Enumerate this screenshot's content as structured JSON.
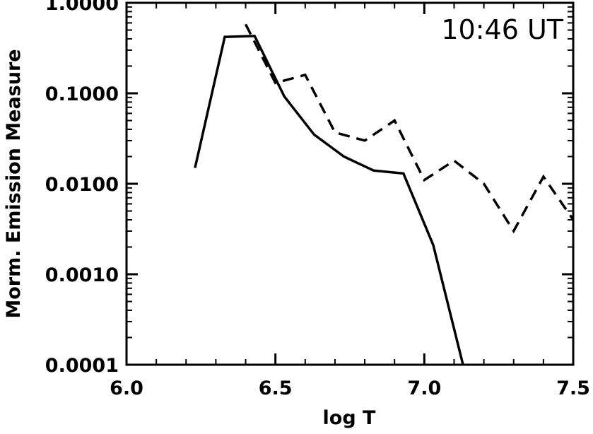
{
  "chart_data": {
    "type": "line",
    "title": "",
    "annotation": "10:46 UT",
    "xlabel": "log T",
    "ylabel": "Morm. Emission Measure",
    "xlim": [
      6.0,
      7.5
    ],
    "ylim": [
      0.0001,
      1.0
    ],
    "yscale": "log",
    "grid": false,
    "x_ticks": [
      6.0,
      6.5,
      7.0,
      7.5
    ],
    "x_tick_labels": [
      "6.0",
      "6.5",
      "7.0",
      "7.5"
    ],
    "y_ticks": [
      1.0,
      0.1,
      0.01,
      0.001,
      0.0001
    ],
    "y_tick_labels": [
      "1.0000",
      "0.1000",
      "0.0100",
      "0.0010",
      "0.0001"
    ],
    "series": [
      {
        "style": "solid",
        "color": "#000000",
        "x": [
          6.23,
          6.33,
          6.43,
          6.53,
          6.63,
          6.73,
          6.83,
          6.93,
          7.03,
          7.13
        ],
        "y": [
          0.015,
          0.42,
          0.43,
          0.092,
          0.035,
          0.02,
          0.014,
          0.013,
          0.0021,
          0.0001
        ]
      },
      {
        "style": "dashed",
        "color": "#000000",
        "x": [
          6.4,
          6.5,
          6.6,
          6.7,
          6.8,
          6.9,
          7.0,
          7.1,
          7.2,
          7.3,
          7.4,
          7.5
        ],
        "y": [
          0.58,
          0.13,
          0.16,
          0.037,
          0.03,
          0.05,
          0.011,
          0.018,
          0.01,
          0.003,
          0.012,
          0.004
        ]
      }
    ]
  }
}
